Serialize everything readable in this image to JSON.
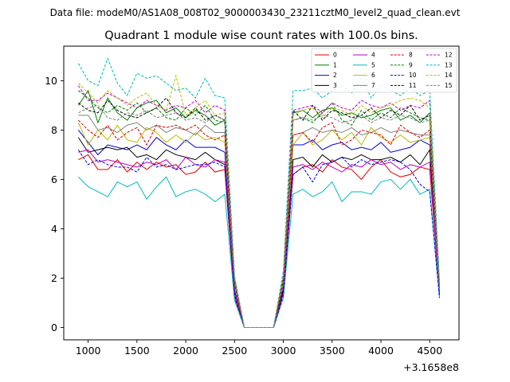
{
  "figure": {
    "suptitle": "Data file: modeM0/AS1A08_008T02_9000003430_23211cztM0_level2_quad_clean.evt",
    "offset_text": "+3.1658e8"
  },
  "chart_data": {
    "type": "line",
    "title": "Quadrant 1 module wise count rates with 100.0s bins.",
    "xlabel": "",
    "ylabel": "",
    "xlim": [
      750,
      4800
    ],
    "ylim": [
      -0.5,
      11.4
    ],
    "x_ticks": [
      1000,
      1500,
      2000,
      2500,
      3000,
      3500,
      4000,
      4500
    ],
    "x_tick_labels": [
      "1000",
      "1500",
      "2000",
      "2500",
      "3000",
      "3500",
      "4000",
      "4500"
    ],
    "y_ticks": [
      0,
      2,
      4,
      6,
      8,
      10
    ],
    "y_tick_labels": [
      "0",
      "2",
      "4",
      "6",
      "8",
      "10"
    ],
    "grid": false,
    "legend_position": "top-right",
    "x": [
      900,
      1000,
      1100,
      1200,
      1300,
      1400,
      1500,
      1600,
      1700,
      1800,
      1900,
      2000,
      2100,
      2200,
      2300,
      2400,
      2500,
      2600,
      2700,
      2800,
      2900,
      3000,
      3100,
      3200,
      3300,
      3400,
      3500,
      3600,
      3700,
      3800,
      3900,
      4000,
      4100,
      4200,
      4300,
      4400,
      4500,
      4600
    ],
    "series": [
      {
        "name": "0",
        "color": "#e00000",
        "dash": "solid",
        "values": [
          6.8,
          7.0,
          6.4,
          6.4,
          6.8,
          6.3,
          6.7,
          6.4,
          6.7,
          6.5,
          6.6,
          6.2,
          6.3,
          6.7,
          6.3,
          6.4,
          1.2,
          0.0,
          0.0,
          0.0,
          0.0,
          1.4,
          6.2,
          6.5,
          6.6,
          6.3,
          6.8,
          6.5,
          6.4,
          6.0,
          6.5,
          6.8,
          6.3,
          6.1,
          6.2,
          6.5,
          6.4,
          1.4
        ]
      },
      {
        "name": "1",
        "color": "#008000",
        "dash": "solid",
        "values": [
          9.0,
          9.6,
          8.3,
          9.3,
          8.7,
          8.4,
          8.9,
          9.1,
          9.2,
          8.7,
          8.9,
          8.5,
          8.8,
          8.6,
          8.2,
          8.4,
          1.9,
          0.0,
          0.0,
          0.0,
          0.0,
          2.0,
          8.7,
          8.8,
          8.5,
          8.8,
          8.9,
          8.6,
          8.7,
          8.5,
          8.6,
          8.8,
          8.9,
          8.4,
          8.6,
          8.3,
          8.7,
          1.6
        ]
      },
      {
        "name": "2",
        "color": "#0000e0",
        "dash": "solid",
        "values": [
          8.0,
          7.5,
          7.0,
          7.4,
          7.3,
          7.2,
          7.4,
          7.2,
          7.7,
          7.4,
          7.2,
          7.6,
          7.3,
          7.3,
          7.3,
          7.1,
          1.5,
          0.0,
          0.0,
          0.0,
          0.0,
          1.6,
          7.4,
          7.4,
          7.6,
          7.2,
          7.4,
          7.5,
          7.2,
          7.3,
          7.2,
          7.5,
          7.1,
          7.2,
          7.3,
          7.6,
          7.4,
          1.4
        ]
      },
      {
        "name": "3",
        "color": "#000000",
        "dash": "solid",
        "values": [
          7.7,
          7.1,
          7.2,
          7.3,
          7.2,
          7.3,
          6.9,
          7.0,
          6.8,
          7.2,
          7.0,
          6.9,
          6.8,
          7.1,
          6.8,
          6.6,
          1.4,
          0.0,
          0.0,
          0.0,
          0.0,
          1.5,
          6.8,
          6.9,
          6.5,
          7.0,
          6.7,
          6.9,
          6.8,
          7.0,
          6.8,
          6.8,
          6.9,
          6.7,
          7.0,
          6.6,
          7.2,
          1.3
        ]
      },
      {
        "name": "4",
        "color": "#c000c0",
        "dash": "solid",
        "values": [
          7.1,
          7.2,
          6.7,
          6.8,
          6.7,
          6.6,
          6.5,
          6.7,
          6.6,
          6.8,
          6.4,
          6.9,
          6.6,
          6.5,
          6.8,
          6.7,
          1.4,
          0.0,
          0.0,
          0.0,
          0.0,
          1.4,
          6.5,
          6.6,
          6.4,
          6.7,
          6.5,
          6.3,
          6.6,
          6.5,
          6.8,
          6.6,
          6.7,
          6.4,
          6.6,
          6.5,
          6.7,
          1.3
        ]
      },
      {
        "name": "5",
        "color": "#00bbbb",
        "dash": "solid",
        "values": [
          6.1,
          5.7,
          5.5,
          5.3,
          5.9,
          5.7,
          5.9,
          5.2,
          5.7,
          6.1,
          5.3,
          5.5,
          5.6,
          5.4,
          5.1,
          5.4,
          1.1,
          0.0,
          0.0,
          0.0,
          0.0,
          1.2,
          5.4,
          5.6,
          5.3,
          5.5,
          5.9,
          5.1,
          5.5,
          5.5,
          5.4,
          5.9,
          6.0,
          5.6,
          6.0,
          5.4,
          5.6,
          1.2
        ]
      },
      {
        "name": "6",
        "color": "#bbbb00",
        "dash": "solid",
        "values": [
          8.3,
          7.4,
          8.0,
          7.6,
          8.2,
          7.6,
          7.5,
          8.1,
          7.9,
          7.5,
          7.8,
          7.5,
          7.9,
          7.6,
          7.7,
          7.5,
          1.7,
          0.0,
          0.0,
          0.0,
          0.0,
          1.8,
          7.4,
          7.9,
          7.4,
          7.6,
          8.0,
          7.6,
          7.9,
          7.4,
          8.1,
          7.7,
          7.5,
          7.8,
          7.5,
          7.6,
          7.7,
          1.5
        ]
      },
      {
        "name": "7",
        "color": "#808080",
        "dash": "solid",
        "values": [
          8.6,
          8.6,
          8.0,
          8.1,
          7.9,
          8.2,
          8.3,
          8.0,
          8.2,
          7.9,
          8.1,
          8.0,
          7.8,
          8.2,
          7.9,
          7.9,
          1.8,
          0.0,
          0.0,
          0.0,
          0.0,
          1.9,
          7.8,
          7.9,
          8.1,
          7.9,
          8.0,
          7.9,
          8.1,
          7.8,
          7.9,
          8.1,
          7.9,
          8.0,
          7.9,
          7.8,
          7.8,
          1.5
        ]
      },
      {
        "name": "8",
        "color": "#e00000",
        "dash": "dashed",
        "values": [
          8.4,
          8.0,
          7.7,
          8.2,
          7.6,
          7.9,
          8.1,
          7.4,
          8.2,
          8.1,
          8.2,
          8.0,
          8.2,
          7.8,
          7.6,
          7.8,
          1.7,
          0.0,
          0.0,
          0.0,
          0.0,
          1.8,
          7.8,
          7.9,
          7.5,
          8.1,
          8.3,
          7.4,
          7.6,
          8.0,
          7.9,
          7.8,
          7.4,
          8.2,
          7.9,
          7.7,
          8.0,
          1.6
        ]
      },
      {
        "name": "9",
        "color": "#008000",
        "dash": "dashed",
        "values": [
          9.6,
          9.3,
          8.9,
          8.7,
          9.0,
          8.8,
          9.1,
          8.7,
          8.9,
          8.5,
          8.4,
          8.9,
          8.6,
          9.0,
          8.4,
          8.3,
          1.9,
          0.0,
          0.0,
          0.0,
          0.0,
          2.0,
          8.4,
          8.5,
          8.3,
          8.7,
          9.1,
          8.4,
          8.2,
          8.8,
          8.4,
          8.7,
          8.5,
          8.9,
          8.7,
          8.5,
          8.4,
          1.7
        ]
      },
      {
        "name": "10",
        "color": "#0000e0",
        "dash": "dashed",
        "values": [
          7.2,
          6.6,
          6.8,
          6.6,
          6.5,
          6.5,
          6.3,
          6.9,
          6.5,
          6.6,
          6.4,
          6.5,
          6.6,
          6.6,
          6.7,
          6.5,
          1.3,
          0.0,
          0.0,
          0.0,
          0.0,
          1.3,
          6.2,
          6.5,
          5.9,
          6.6,
          6.7,
          6.9,
          6.5,
          6.8,
          6.6,
          6.7,
          6.8,
          6.7,
          6.4,
          5.8,
          5.5,
          1.2
        ]
      },
      {
        "name": "11",
        "color": "#000000",
        "dash": "dashed",
        "values": [
          9.1,
          8.8,
          8.7,
          9.2,
          8.8,
          8.6,
          8.5,
          8.7,
          8.9,
          9.3,
          8.7,
          8.5,
          8.9,
          8.4,
          8.6,
          8.4,
          1.9,
          0.0,
          0.0,
          0.0,
          0.0,
          2.0,
          8.8,
          8.4,
          9.0,
          8.4,
          8.8,
          8.7,
          8.5,
          8.6,
          8.9,
          8.5,
          8.8,
          8.6,
          9.0,
          8.4,
          8.6,
          1.6
        ]
      },
      {
        "name": "12",
        "color": "#c000c0",
        "dash": "dashed",
        "values": [
          9.8,
          9.2,
          9.2,
          9.5,
          9.3,
          9.1,
          8.9,
          9.2,
          9.0,
          8.8,
          9.0,
          8.9,
          9.2,
          8.7,
          9.0,
          8.8,
          2.0,
          0.0,
          0.0,
          0.0,
          0.0,
          2.1,
          8.8,
          8.9,
          9.0,
          8.7,
          9.1,
          8.9,
          8.8,
          9.2,
          9.0,
          8.9,
          9.1,
          8.8,
          9.0,
          8.9,
          9.2,
          1.7
        ]
      },
      {
        "name": "13",
        "color": "#00bbbb",
        "dash": "dashed",
        "values": [
          10.7,
          10.0,
          9.8,
          10.9,
          9.9,
          9.4,
          10.3,
          10.1,
          10.2,
          9.9,
          9.6,
          9.7,
          9.3,
          10.1,
          9.4,
          9.3,
          2.1,
          0.0,
          0.0,
          0.0,
          0.0,
          2.3,
          9.6,
          9.6,
          9.7,
          9.3,
          9.6,
          9.8,
          9.5,
          10.1,
          9.3,
          9.8,
          9.6,
          9.4,
          9.7,
          9.4,
          9.6,
          1.9
        ]
      },
      {
        "name": "14",
        "color": "#bbbb00",
        "dash": "dashed",
        "values": [
          9.9,
          9.5,
          9.1,
          9.6,
          9.3,
          9.0,
          9.3,
          9.5,
          9.0,
          8.8,
          10.2,
          8.6,
          8.9,
          9.2,
          8.6,
          8.7,
          2.0,
          0.0,
          0.0,
          0.0,
          0.0,
          2.1,
          8.6,
          8.8,
          8.9,
          8.5,
          8.9,
          8.8,
          8.6,
          9.0,
          8.7,
          8.9,
          9.0,
          9.2,
          9.3,
          9.2,
          8.9,
          1.7
        ]
      },
      {
        "name": "15",
        "color": "#808080",
        "dash": "dashed",
        "values": [
          8.7,
          8.9,
          9.0,
          8.5,
          8.4,
          8.7,
          8.6,
          8.8,
          8.5,
          8.6,
          8.7,
          8.4,
          8.5,
          8.3,
          8.6,
          8.4,
          1.9,
          0.0,
          0.0,
          0.0,
          0.0,
          2.0,
          8.4,
          8.5,
          8.4,
          8.6,
          8.5,
          8.3,
          8.4,
          8.6,
          8.3,
          8.5,
          8.4,
          8.6,
          8.5,
          8.3,
          8.4,
          1.6
        ]
      }
    ]
  }
}
